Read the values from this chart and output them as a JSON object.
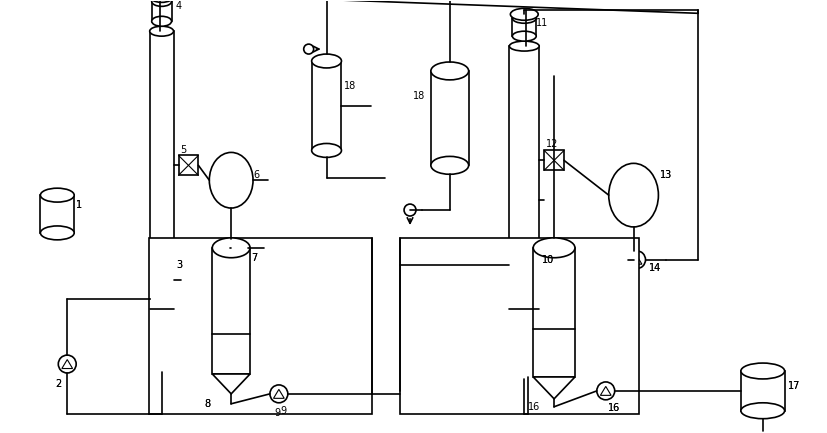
{
  "bg_color": "#ffffff",
  "line_color": "#000000",
  "line_width": 1.2,
  "fig_width": 8.27,
  "fig_height": 4.33,
  "dpi": 100
}
